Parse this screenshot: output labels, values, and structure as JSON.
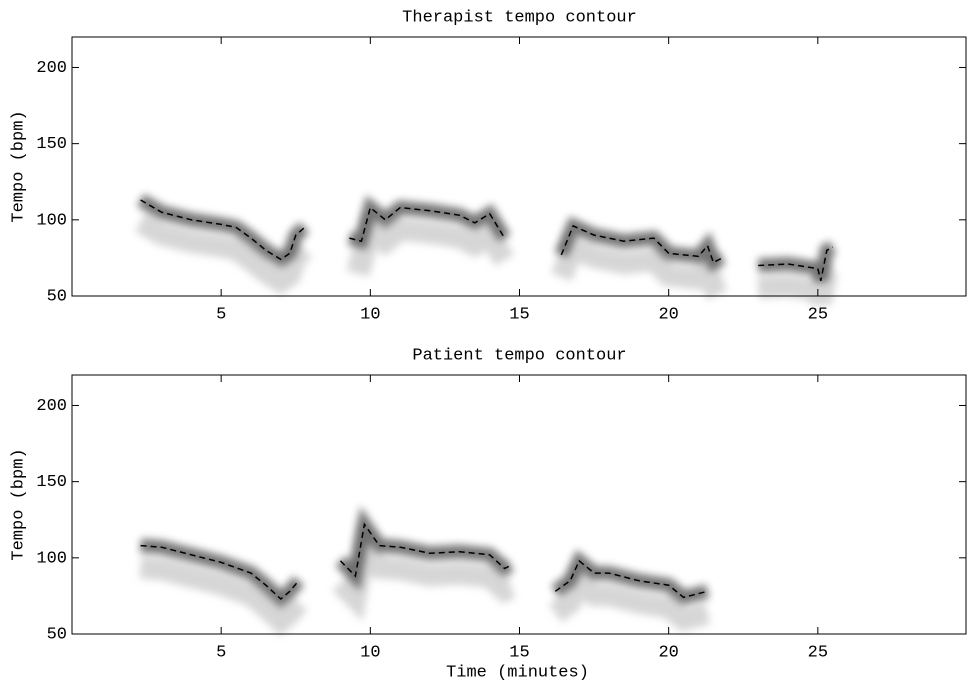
{
  "chart_data": [
    {
      "type": "line",
      "title": "Therapist tempo contour",
      "ylabel": "Tempo (bpm)",
      "xlim": [
        0,
        30
      ],
      "xticks": [
        5,
        10,
        15,
        20,
        25
      ],
      "ylim": [
        50,
        220
      ],
      "yticks": [
        50,
        100,
        150,
        200
      ],
      "x": [
        2.3,
        3,
        4,
        5,
        5.5,
        6,
        6.5,
        7,
        7.3,
        7.5,
        7.8,
        8.5,
        9.3,
        9.7,
        10,
        10.5,
        11,
        12,
        13,
        13.5,
        14,
        14.5,
        15.5,
        16.4,
        16.8,
        17.5,
        18.5,
        19.5,
        20,
        21,
        21.3,
        21.5,
        21.8,
        22.4,
        23,
        24,
        25,
        25.1,
        25.3,
        25.5
      ],
      "series": [
        {
          "color": "#000000",
          "dashed": true,
          "values": [
            113,
            105,
            100,
            97,
            95,
            88,
            80,
            74,
            78,
            90,
            95,
            null,
            88,
            86,
            108,
            100,
            108,
            106,
            103,
            98,
            104,
            88,
            null,
            77,
            96,
            90,
            86,
            88,
            78,
            76,
            83,
            72,
            75,
            null,
            70,
            71,
            68,
            60,
            80,
            82
          ]
        }
      ]
    },
    {
      "type": "line",
      "title": "Patient tempo contour",
      "ylabel": "Tempo (bpm)",
      "xlabel": "Time (minutes)",
      "xlim": [
        0,
        30
      ],
      "xticks": [
        5,
        10,
        15,
        20,
        25
      ],
      "ylim": [
        50,
        220
      ],
      "yticks": [
        50,
        100,
        150,
        200
      ],
      "x": [
        2.3,
        3,
        4,
        5,
        6,
        6.5,
        7,
        7.3,
        7.6,
        8.3,
        9,
        9.5,
        9.8,
        10.3,
        11,
        12,
        13,
        14,
        14.5,
        14.7,
        15.5,
        16.2,
        16.7,
        17,
        17.5,
        18,
        19,
        20,
        20.5,
        21.3
      ],
      "series": [
        {
          "color": "#000000",
          "dashed": true,
          "values": [
            108,
            107,
            102,
            97,
            90,
            82,
            73,
            78,
            85,
            null,
            98,
            88,
            122,
            108,
            107,
            103,
            104,
            102,
            93,
            95,
            null,
            78,
            85,
            98,
            90,
            90,
            85,
            82,
            74,
            78
          ]
        }
      ]
    }
  ]
}
